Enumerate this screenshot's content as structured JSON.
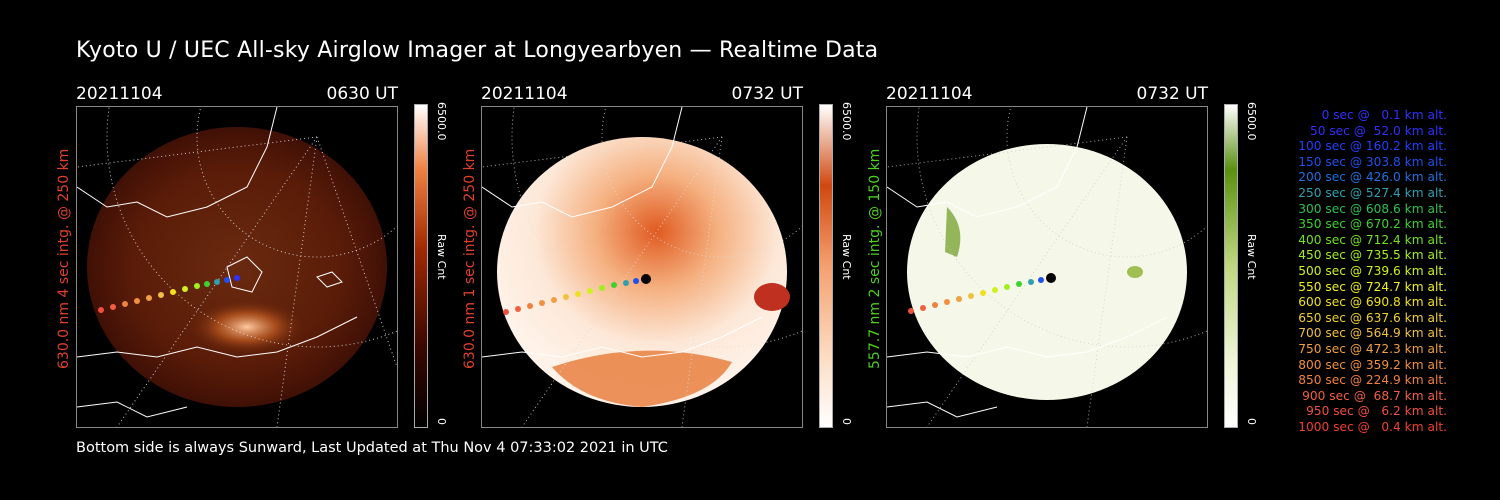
{
  "title": "Kyoto U / UEC All-sky Airglow Imager at Longyearbyen — Realtime Data",
  "footer": "Bottom side is always Sunward, Last Updated at Thu Nov  4 07:33:02 2021 in UTC",
  "colors": {
    "red_label": "#e0402a",
    "green_label": "#4cd020"
  },
  "panels": [
    {
      "date": "20211104",
      "time": "0630 UT",
      "ylabel": "630.0 nm 4 sec intg. @ 250 km",
      "cbar_max": "6500.0",
      "cbar_min": "0",
      "cbar_label": "Raw Cnt"
    },
    {
      "date": "20211104",
      "time": "0732 UT",
      "ylabel": "630.0 nm 1 sec intg. @ 250 km",
      "cbar_max": "6500.0",
      "cbar_min": "0",
      "cbar_label": "Raw Cnt"
    },
    {
      "date": "20211104",
      "time": "0732 UT",
      "ylabel": "557.7 nm 2 sec intg. @ 150 km",
      "cbar_max": "6500.0",
      "cbar_min": "0",
      "cbar_label": "Raw Cnt"
    }
  ],
  "legend": [
    {
      "text": "0 sec @   0.1 km alt.",
      "color": "#3030ff"
    },
    {
      "text": "50 sec @  52.0 km alt.",
      "color": "#3030ff"
    },
    {
      "text": "100 sec @ 160.2 km alt.",
      "color": "#2040ff"
    },
    {
      "text": "150 sec @ 303.8 km alt.",
      "color": "#2050f0"
    },
    {
      "text": "200 sec @ 426.0 km alt.",
      "color": "#2070e0"
    },
    {
      "text": "250 sec @ 527.4 km alt.",
      "color": "#30a0b0"
    },
    {
      "text": "300 sec @ 608.6 km alt.",
      "color": "#30c050"
    },
    {
      "text": "350 sec @ 670.2 km alt.",
      "color": "#40d030"
    },
    {
      "text": "400 sec @ 712.4 km alt.",
      "color": "#70e020"
    },
    {
      "text": "450 sec @ 735.5 km alt.",
      "color": "#a0f020"
    },
    {
      "text": "500 sec @ 739.6 km alt.",
      "color": "#d0f020"
    },
    {
      "text": "550 sec @ 724.7 km alt.",
      "color": "#f0f020"
    },
    {
      "text": "600 sec @ 690.8 km alt.",
      "color": "#f0e020"
    },
    {
      "text": "650 sec @ 637.6 km alt.",
      "color": "#f0d030"
    },
    {
      "text": "700 sec @ 564.9 km alt.",
      "color": "#f0c040"
    },
    {
      "text": "750 sec @ 472.3 km alt.",
      "color": "#f0a040"
    },
    {
      "text": "800 sec @ 359.2 km alt.",
      "color": "#f09040"
    },
    {
      "text": "850 sec @ 224.9 km alt.",
      "color": "#f08040"
    },
    {
      "text": "900 sec @  68.7 km alt.",
      "color": "#f06040"
    },
    {
      "text": "950 sec @   6.2 km alt.",
      "color": "#f05040"
    },
    {
      "text": "1000 sec @   0.4 km alt.",
      "color": "#f04030"
    }
  ]
}
